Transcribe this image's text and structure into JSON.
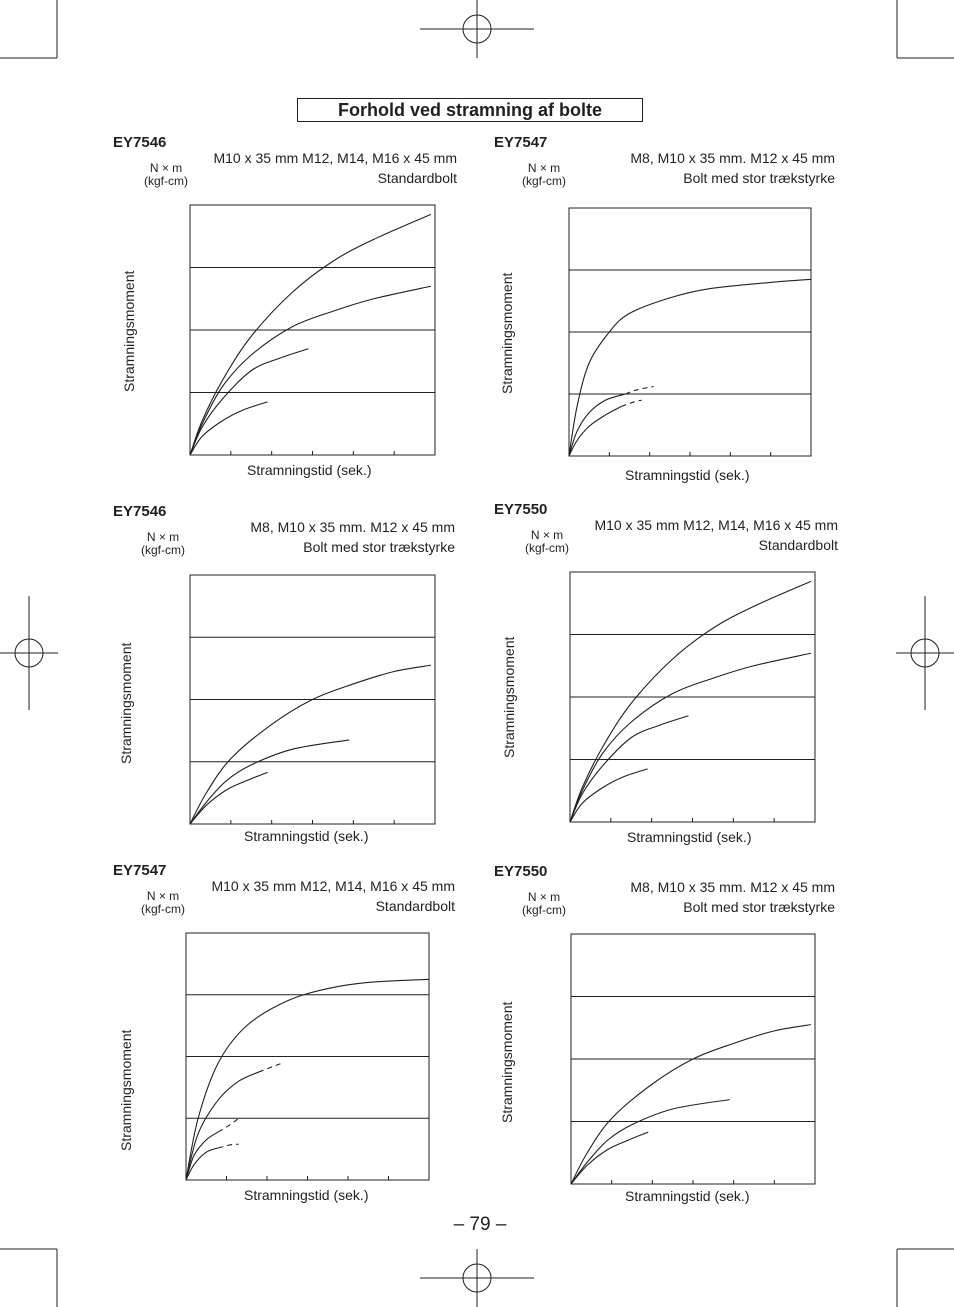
{
  "title": "Forhold ved stramning af bolte",
  "page_number": "– 79 –",
  "chart_data": [
    {
      "type": "line",
      "model": "EY7546",
      "bolts": "M10 x 35 mm M12, M14, M16 x 45 mm",
      "bolt_type": "Standardbolt",
      "unit_top": "N × m",
      "unit_bottom": "(kgf-cm)",
      "ylabel": "Stramningsmoment",
      "xlabel": "Stramningstid (sek.)",
      "grid_rows": 4,
      "x_ticks": 6,
      "xlim": [
        0,
        6
      ],
      "ylim": [
        0,
        4
      ],
      "series": [
        {
          "dashed": false,
          "points": [
            [
              0,
              0
            ],
            [
              0.3,
              0.55
            ],
            [
              0.8,
              1.2
            ],
            [
              1.5,
              1.9
            ],
            [
              2.5,
              2.6
            ],
            [
              3.5,
              3.1
            ],
            [
              4.5,
              3.45
            ],
            [
              5.9,
              3.85
            ]
          ]
        },
        {
          "dashed": false,
          "points": [
            [
              0,
              0
            ],
            [
              0.3,
              0.5
            ],
            [
              0.8,
              1.1
            ],
            [
              1.5,
              1.6
            ],
            [
              2.5,
              2.05
            ],
            [
              3.5,
              2.3
            ],
            [
              4.5,
              2.5
            ],
            [
              5.9,
              2.7
            ]
          ]
        },
        {
          "dashed": false,
          "points": [
            [
              0,
              0
            ],
            [
              0.3,
              0.45
            ],
            [
              0.8,
              0.9
            ],
            [
              1.5,
              1.35
            ],
            [
              2.2,
              1.55
            ],
            [
              2.9,
              1.7
            ]
          ]
        },
        {
          "dashed": false,
          "points": [
            [
              0,
              0
            ],
            [
              0.3,
              0.3
            ],
            [
              0.8,
              0.55
            ],
            [
              1.3,
              0.72
            ],
            [
              1.9,
              0.85
            ]
          ]
        }
      ]
    },
    {
      "type": "line",
      "model": "EY7547",
      "bolts": "M8, M10 x 35 mm. M12 x 45 mm",
      "bolt_type": "Bolt med stor trækstyrke",
      "unit_top": "N × m",
      "unit_bottom": "(kgf-cm)",
      "ylabel": "Stramningsmoment",
      "xlabel": "Stramningstid (sek.)",
      "grid_rows": 4,
      "x_ticks": 6,
      "xlim": [
        0,
        6
      ],
      "ylim": [
        0,
        4
      ],
      "series": [
        {
          "dashed": false,
          "points": [
            [
              0,
              0
            ],
            [
              0.2,
              0.8
            ],
            [
              0.5,
              1.5
            ],
            [
              1,
              2.0
            ],
            [
              1.5,
              2.3
            ],
            [
              2.5,
              2.55
            ],
            [
              3.5,
              2.7
            ],
            [
              5,
              2.8
            ],
            [
              6,
              2.85
            ]
          ]
        },
        {
          "dashed": false,
          "points": [
            [
              0,
              0
            ],
            [
              0.2,
              0.4
            ],
            [
              0.5,
              0.7
            ],
            [
              0.9,
              0.9
            ],
            [
              1.4,
              1.0
            ]
          ]
        },
        {
          "dashed": true,
          "points": [
            [
              1.4,
              1.0
            ],
            [
              1.7,
              1.07
            ],
            [
              2.1,
              1.12
            ]
          ]
        },
        {
          "dashed": false,
          "points": [
            [
              0,
              0
            ],
            [
              0.2,
              0.25
            ],
            [
              0.5,
              0.48
            ],
            [
              0.9,
              0.66
            ],
            [
              1.3,
              0.8
            ]
          ]
        },
        {
          "dashed": true,
          "points": [
            [
              1.3,
              0.8
            ],
            [
              1.6,
              0.87
            ],
            [
              1.8,
              0.9
            ]
          ]
        }
      ]
    },
    {
      "type": "line",
      "model": "EY7546",
      "bolts": "M8, M10 x 35 mm. M12 x 45 mm",
      "bolt_type": "Bolt med stor trækstyrke",
      "unit_top": "N × m",
      "unit_bottom": "(kgf-cm)",
      "ylabel": "Stramningsmoment",
      "xlabel": "Stramningstid (sek.)",
      "grid_rows": 4,
      "x_ticks": 6,
      "xlim": [
        0,
        6
      ],
      "ylim": [
        0,
        4
      ],
      "series": [
        {
          "dashed": false,
          "points": [
            [
              0,
              0
            ],
            [
              0.4,
              0.5
            ],
            [
              1,
              1.05
            ],
            [
              2,
              1.6
            ],
            [
              3,
              2.0
            ],
            [
              4,
              2.25
            ],
            [
              5,
              2.45
            ],
            [
              5.9,
              2.55
            ]
          ]
        },
        {
          "dashed": false,
          "points": [
            [
              0,
              0
            ],
            [
              0.4,
              0.35
            ],
            [
              0.9,
              0.7
            ],
            [
              1.5,
              0.95
            ],
            [
              2.5,
              1.2
            ],
            [
              3.9,
              1.35
            ]
          ]
        },
        {
          "dashed": false,
          "points": [
            [
              0,
              0
            ],
            [
              0.4,
              0.3
            ],
            [
              0.9,
              0.55
            ],
            [
              1.4,
              0.7
            ],
            [
              1.9,
              0.83
            ]
          ]
        }
      ]
    },
    {
      "type": "line",
      "model": "EY7550",
      "bolts": "M10 x 35 mm M12, M14, M16 x 45 mm",
      "bolt_type": "Standardbolt",
      "unit_top": "N × m",
      "unit_bottom": "(kgf-cm)",
      "ylabel": "Stramningsmoment",
      "xlabel": "Stramningstid (sek.)",
      "grid_rows": 4,
      "x_ticks": 6,
      "xlim": [
        0,
        6
      ],
      "ylim": [
        0,
        4
      ],
      "series": [
        {
          "dashed": false,
          "points": [
            [
              0,
              0
            ],
            [
              0.3,
              0.55
            ],
            [
              0.8,
              1.2
            ],
            [
              1.5,
              1.9
            ],
            [
              2.5,
              2.6
            ],
            [
              3.5,
              3.1
            ],
            [
              4.5,
              3.45
            ],
            [
              5.9,
              3.85
            ]
          ]
        },
        {
          "dashed": false,
          "points": [
            [
              0,
              0
            ],
            [
              0.3,
              0.5
            ],
            [
              0.8,
              1.1
            ],
            [
              1.5,
              1.6
            ],
            [
              2.5,
              2.05
            ],
            [
              3.5,
              2.3
            ],
            [
              4.5,
              2.5
            ],
            [
              5.9,
              2.7
            ]
          ]
        },
        {
          "dashed": false,
          "points": [
            [
              0,
              0
            ],
            [
              0.3,
              0.45
            ],
            [
              0.8,
              0.9
            ],
            [
              1.5,
              1.35
            ],
            [
              2.2,
              1.55
            ],
            [
              2.9,
              1.7
            ]
          ]
        },
        {
          "dashed": false,
          "points": [
            [
              0,
              0
            ],
            [
              0.3,
              0.3
            ],
            [
              0.8,
              0.55
            ],
            [
              1.3,
              0.72
            ],
            [
              1.9,
              0.85
            ]
          ]
        }
      ]
    },
    {
      "type": "line",
      "model": "EY7547",
      "bolts": "M10 x 35 mm M12, M14, M16 x 45 mm",
      "bolt_type": "Standardbolt",
      "unit_top": "N × m",
      "unit_bottom": "(kgf-cm)",
      "ylabel": "Stramningsmoment",
      "xlabel": "Stramningstid (sek.)",
      "grid_rows": 4,
      "x_ticks": 6,
      "xlim": [
        0,
        6
      ],
      "ylim": [
        0,
        4
      ],
      "series": [
        {
          "dashed": false,
          "points": [
            [
              0,
              0
            ],
            [
              0.3,
              1.0
            ],
            [
              0.8,
              1.9
            ],
            [
              1.5,
              2.5
            ],
            [
              2.5,
              2.9
            ],
            [
              3.5,
              3.1
            ],
            [
              4.5,
              3.2
            ],
            [
              6,
              3.25
            ]
          ]
        },
        {
          "dashed": false,
          "points": [
            [
              0,
              0
            ],
            [
              0.3,
              0.75
            ],
            [
              0.8,
              1.3
            ],
            [
              1.3,
              1.6
            ],
            [
              1.8,
              1.75
            ]
          ]
        },
        {
          "dashed": true,
          "points": [
            [
              1.8,
              1.75
            ],
            [
              2.2,
              1.85
            ],
            [
              2.4,
              1.9
            ]
          ]
        },
        {
          "dashed": false,
          "points": [
            [
              0,
              0
            ],
            [
              0.2,
              0.4
            ],
            [
              0.5,
              0.65
            ],
            [
              0.8,
              0.78
            ]
          ]
        },
        {
          "dashed": true,
          "points": [
            [
              0.8,
              0.78
            ],
            [
              1.1,
              0.9
            ],
            [
              1.3,
              1.0
            ]
          ]
        },
        {
          "dashed": false,
          "points": [
            [
              0,
              0
            ],
            [
              0.2,
              0.25
            ],
            [
              0.5,
              0.45
            ],
            [
              0.8,
              0.52
            ]
          ]
        },
        {
          "dashed": true,
          "points": [
            [
              0.8,
              0.52
            ],
            [
              1.1,
              0.57
            ],
            [
              1.3,
              0.58
            ]
          ]
        }
      ]
    },
    {
      "type": "line",
      "model": "EY7550",
      "bolts": "M8, M10 x 35 mm. M12 x 45 mm",
      "bolt_type": "Bolt med stor trækstyrke",
      "unit_top": "N × m",
      "unit_bottom": "(kgf-cm)",
      "ylabel": "Stramningsmoment",
      "xlabel": "Stramningstid (sek.)",
      "grid_rows": 4,
      "x_ticks": 6,
      "xlim": [
        0,
        6
      ],
      "ylim": [
        0,
        4
      ],
      "series": [
        {
          "dashed": false,
          "points": [
            [
              0,
              0
            ],
            [
              0.4,
              0.5
            ],
            [
              1,
              1.05
            ],
            [
              2,
              1.6
            ],
            [
              3,
              2.0
            ],
            [
              4,
              2.25
            ],
            [
              5,
              2.45
            ],
            [
              5.9,
              2.55
            ]
          ]
        },
        {
          "dashed": false,
          "points": [
            [
              0,
              0
            ],
            [
              0.4,
              0.35
            ],
            [
              0.9,
              0.7
            ],
            [
              1.5,
              0.95
            ],
            [
              2.5,
              1.2
            ],
            [
              3.9,
              1.35
            ]
          ]
        },
        {
          "dashed": false,
          "points": [
            [
              0,
              0
            ],
            [
              0.4,
              0.3
            ],
            [
              0.9,
              0.55
            ],
            [
              1.4,
              0.7
            ],
            [
              1.9,
              0.83
            ]
          ]
        }
      ]
    }
  ]
}
